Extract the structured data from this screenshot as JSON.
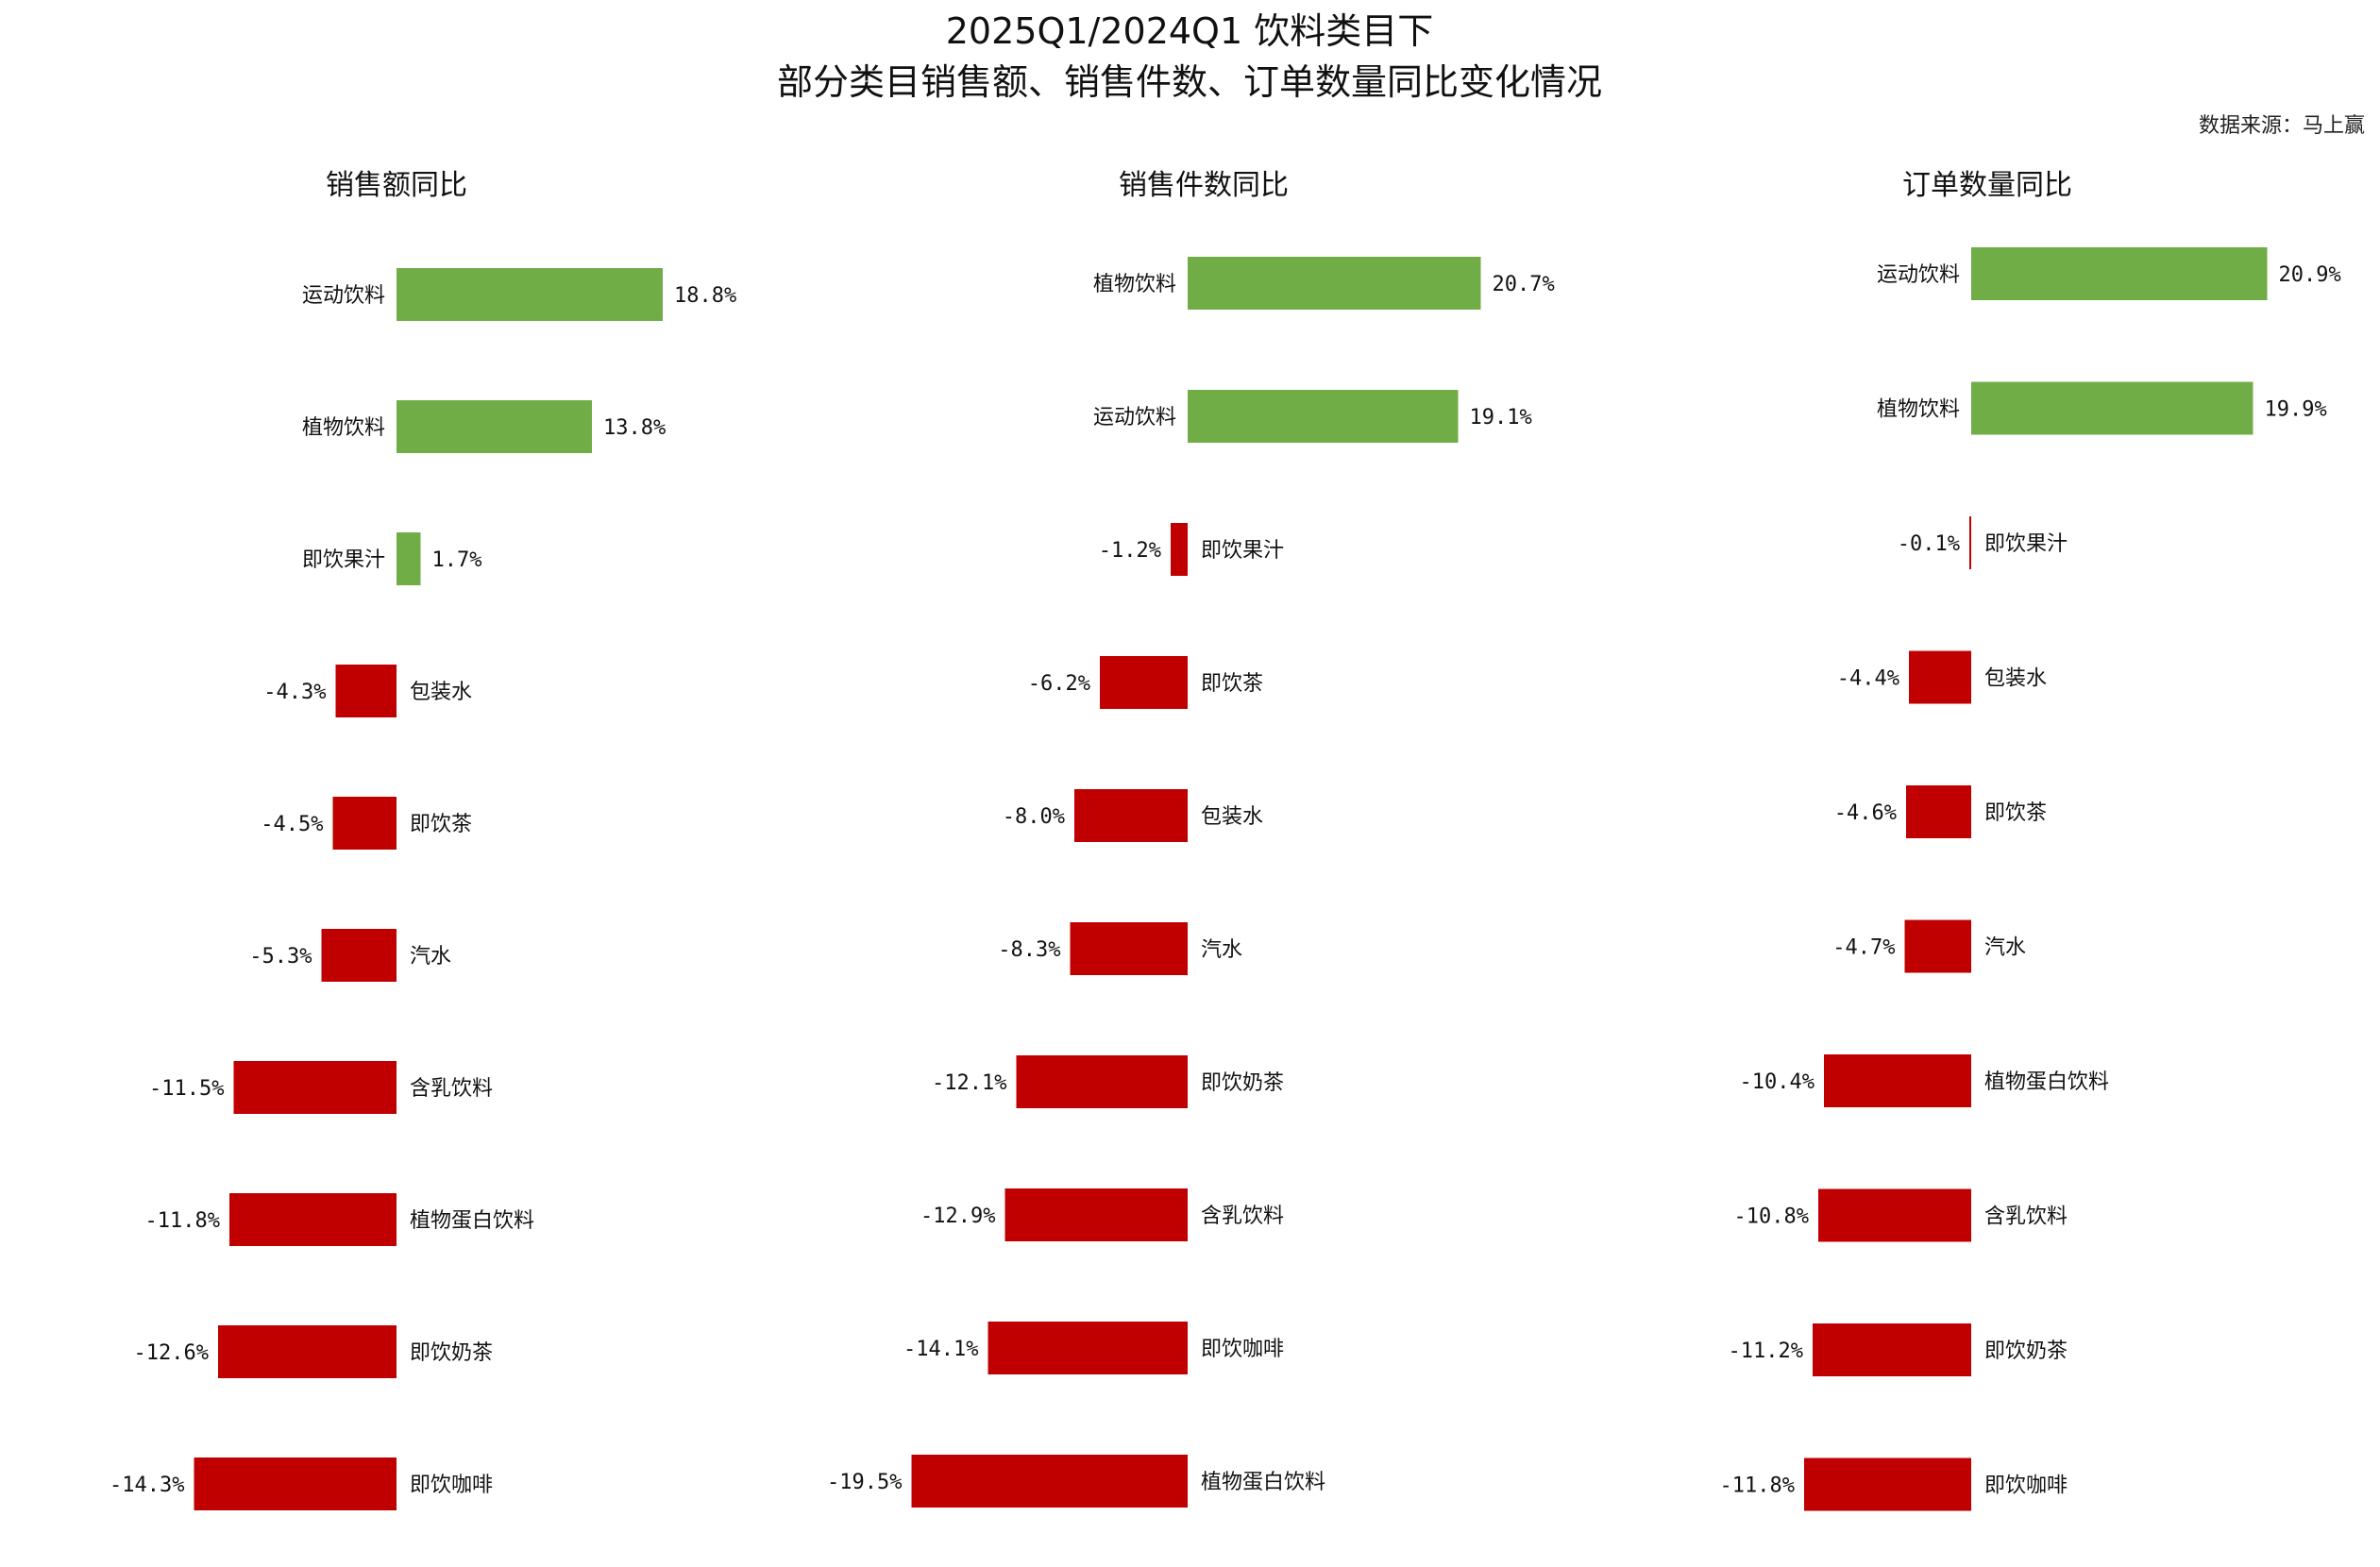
{
  "title_line1": "2025Q1/2024Q1 饮料类目下",
  "title_line2": "部分类目销售额、销售件数、订单数量同比变化情况",
  "source": "数据来源：马上赢",
  "colors": {
    "positive": "#70ad47",
    "negative": "#c00000"
  },
  "chart_data": [
    {
      "type": "bar",
      "orientation": "horizontal",
      "title": "销售额同比",
      "unit": "%",
      "categories": [
        "运动饮料",
        "植物饮料",
        "即饮果汁",
        "包装水",
        "即饮茶",
        "汽水",
        "含乳饮料",
        "植物蛋白饮料",
        "即饮奶茶",
        "即饮咖啡"
      ],
      "values": [
        18.8,
        13.8,
        1.7,
        -4.3,
        -4.5,
        -5.3,
        -11.5,
        -11.8,
        -12.6,
        -14.3
      ],
      "labels": [
        "18.8%",
        "13.8%",
        "1.7%",
        "-4.3%",
        "-4.5%",
        "-5.3%",
        "-11.5%",
        "-11.8%",
        "-12.6%",
        "-14.3%"
      ]
    },
    {
      "type": "bar",
      "orientation": "horizontal",
      "title": "销售件数同比",
      "unit": "%",
      "categories": [
        "植物饮料",
        "运动饮料",
        "即饮果汁",
        "即饮茶",
        "包装水",
        "汽水",
        "即饮奶茶",
        "含乳饮料",
        "即饮咖啡",
        "植物蛋白饮料"
      ],
      "values": [
        20.7,
        19.1,
        -1.2,
        -6.2,
        -8.0,
        -8.3,
        -12.1,
        -12.9,
        -14.1,
        -19.5
      ],
      "labels": [
        "20.7%",
        "19.1%",
        "-1.2%",
        "-6.2%",
        "-8.0%",
        "-8.3%",
        "-12.1%",
        "-12.9%",
        "-14.1%",
        "-19.5%"
      ]
    },
    {
      "type": "bar",
      "orientation": "horizontal",
      "title": "订单数量同比",
      "unit": "%",
      "categories": [
        "运动饮料",
        "植物饮料",
        "即饮果汁",
        "包装水",
        "即饮茶",
        "汽水",
        "植物蛋白饮料",
        "含乳饮料",
        "即饮奶茶",
        "即饮咖啡"
      ],
      "values": [
        20.9,
        19.9,
        -0.1,
        -4.4,
        -4.6,
        -4.7,
        -10.4,
        -10.8,
        -11.2,
        -11.8
      ],
      "labels": [
        "20.9%",
        "19.9%",
        "-0.1%",
        "-4.4%",
        "-4.6%",
        "-4.7%",
        "-10.4%",
        "-10.8%",
        "-11.2%",
        "-11.8%"
      ]
    }
  ]
}
